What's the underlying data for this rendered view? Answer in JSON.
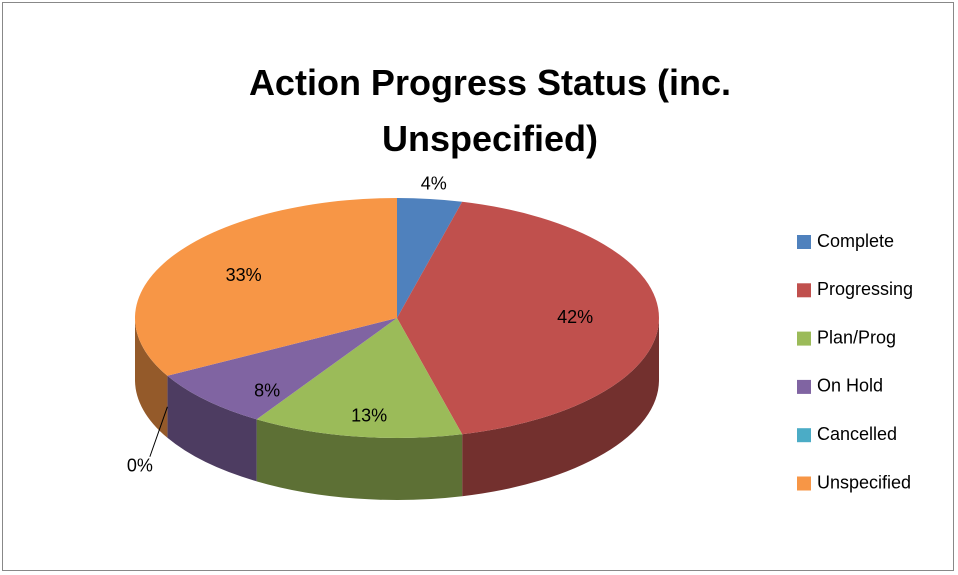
{
  "chart_data": {
    "type": "pie3d",
    "title": "Action Progress Status (inc. Unspecified)",
    "categories": [
      "Complete",
      "Progressing",
      "Plan/Prog",
      "On Hold",
      "Cancelled",
      "Unspecified"
    ],
    "values": [
      4,
      42,
      13,
      8,
      0,
      33
    ],
    "value_labels": [
      "4%",
      "42%",
      "13%",
      "8%",
      "0%",
      "33%"
    ],
    "colors": [
      "#4F81BD",
      "#C0504D",
      "#9BBB59",
      "#8064A2",
      "#4BACC6",
      "#F79646"
    ],
    "legend": "right"
  }
}
